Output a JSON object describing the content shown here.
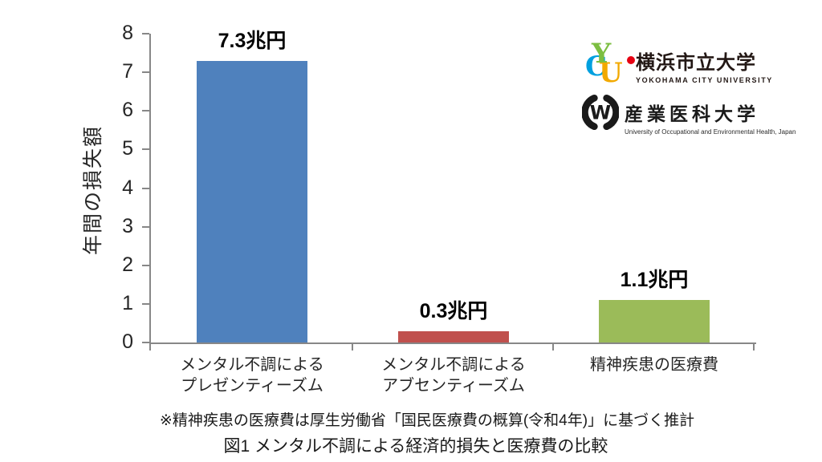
{
  "chart_data": {
    "type": "bar",
    "title": "",
    "ylabel": "年間の損失額",
    "xlabel": "",
    "ylim": [
      0,
      8
    ],
    "yticks": [
      0,
      1,
      2,
      3,
      4,
      5,
      6,
      7,
      8
    ],
    "grid": false,
    "legend": "none",
    "categories": [
      [
        "メンタル不調による",
        "プレゼンティーズム"
      ],
      [
        "メンタル不調による",
        "アブセンティーズム"
      ],
      [
        "精神疾患の医療費"
      ]
    ],
    "values": [
      7.3,
      0.3,
      1.1
    ],
    "value_labels": [
      "7.3兆円",
      "0.3兆円",
      "1.1兆円"
    ],
    "bar_colors": [
      "#4F81BD",
      "#C0504D",
      "#9BBB59"
    ],
    "axis_color": "#878787"
  },
  "logos": {
    "ycu": {
      "monogram": [
        {
          "char": "Y",
          "color": "#7CBE41"
        },
        {
          "char": "C",
          "color": "#00A0DF"
        },
        {
          "char": "U",
          "color": "#F2A900"
        }
      ],
      "dot_color": "#E60012",
      "name_ja": "横浜市立大学",
      "name_en": "YOKOHAMA CITY UNIVERSITY"
    },
    "uoeh": {
      "emblem_letter": "W",
      "emblem_color": "#1a1a1a",
      "name_ja": "産業医科大学",
      "name_en": "University of Occupational and Environmental Health, Japan"
    }
  },
  "figure": {
    "footnote": "※精神疾患の医療費は厚生労働省「国民医療費の概算(令和4年)」に基づく推計",
    "caption": "図1 メンタル不調による経済的損失と医療費の比較"
  }
}
